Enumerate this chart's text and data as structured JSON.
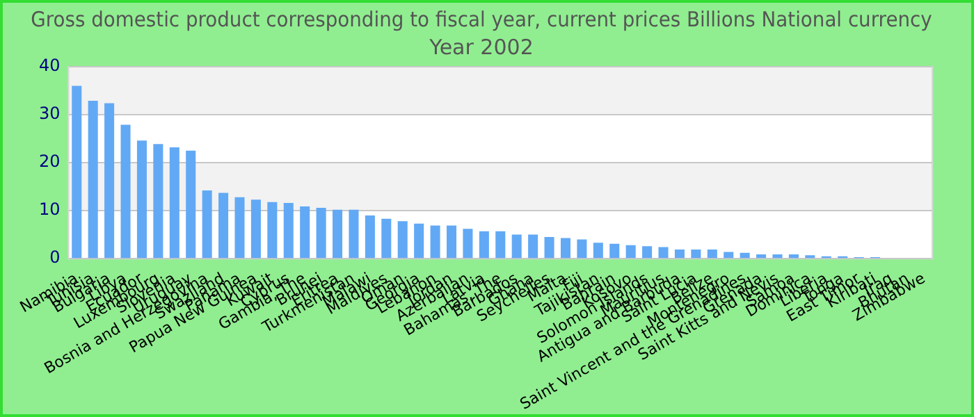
{
  "chart_data": {
    "type": "bar",
    "title": "Gross domestic product corresponding to fiscal year, current prices Billions National currency",
    "subtitle": "Year 2002",
    "categories": [
      "Namibia",
      "Tunisia",
      "Bulgaria",
      "Libya",
      "Ecuador",
      "Luxembourg",
      "Slovenia",
      "Uruguay",
      "Bosnia and Herzegovina",
      "Swaziland",
      "Panama",
      "Papua New Guinea",
      "Kuwait",
      "Cyprus",
      "Gambia, The",
      "Brunei",
      "Eritrea",
      "Turkmenistan",
      "Malawi",
      "Maldives",
      "Oman",
      "Georgia",
      "Lebanon",
      "Jordan",
      "Azerbaijan",
      "Latvia",
      "Bahamas, The",
      "Barbados",
      "Ghana",
      "Seychelles",
      "Malta",
      "Fiji",
      "Tajikistan",
      "Bahrain",
      "Kosovo",
      "Solomon Islands",
      "Mauritius",
      "Antigua and Barbuda",
      "Saint Lucia",
      "Belize",
      "Montenegro",
      "Saint Vincent and the Grenadines",
      "Grenada",
      "Saint Kitts and Nevis",
      "Samoa",
      "Dominica",
      "Liberia",
      "Tonga",
      "East Timor",
      "Kiribati",
      "Iraq",
      "Bhutan",
      "Zimbabwe"
    ],
    "values": [
      36.0,
      32.9,
      32.4,
      27.9,
      24.6,
      23.9,
      23.2,
      22.5,
      14.2,
      13.7,
      12.8,
      12.3,
      11.8,
      11.6,
      10.9,
      10.6,
      10.2,
      10.2,
      9.0,
      8.3,
      7.8,
      7.3,
      6.9,
      6.9,
      6.2,
      5.7,
      5.7,
      5.0,
      5.0,
      4.5,
      4.3,
      4.0,
      3.3,
      3.1,
      2.8,
      2.6,
      2.4,
      1.9,
      1.9,
      1.9,
      1.4,
      1.2,
      0.9,
      0.9,
      0.9,
      0.7,
      0.5,
      0.5,
      0.3,
      0.3,
      null,
      null,
      null
    ],
    "color": "#62a9f5",
    "ylim": [
      0,
      40
    ],
    "yticks": [
      0,
      10,
      20,
      30,
      40
    ],
    "grid": true
  }
}
